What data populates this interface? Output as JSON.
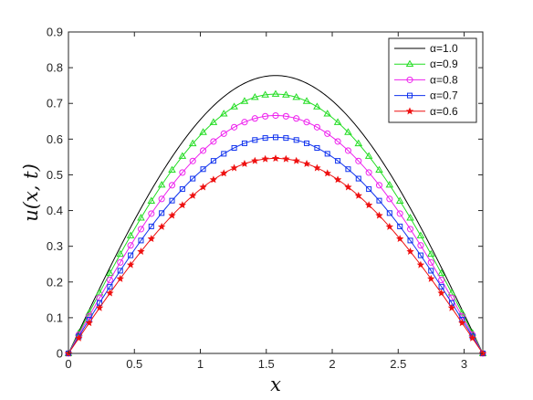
{
  "chart_data": {
    "type": "line",
    "title": "",
    "xlabel": "x",
    "ylabel": "u(x, t)",
    "xlim": [
      0,
      3.1416
    ],
    "ylim": [
      0,
      0.9
    ],
    "x_ticks": [
      "0",
      "0.5",
      "1",
      "1.5",
      "2",
      "2.5",
      "3"
    ],
    "y_ticks": [
      "0",
      "0.1",
      "0.2",
      "0.3",
      "0.4",
      "0.5",
      "0.6",
      "0.7",
      "0.8",
      "0.9"
    ],
    "x_tick_values": [
      0,
      0.5,
      1,
      1.5,
      2,
      2.5,
      3
    ],
    "y_tick_values": [
      0,
      0.1,
      0.2,
      0.3,
      0.4,
      0.5,
      0.6,
      0.7,
      0.8,
      0.9
    ],
    "grid": false,
    "legend_position": "top-right",
    "curve": "u = peak * sin(x), x from 0 to pi",
    "series": [
      {
        "name": "α=1.0",
        "peak": 0.778,
        "color": "#000000",
        "marker": "none"
      },
      {
        "name": "α=0.9",
        "peak": 0.726,
        "color": "#22dd22",
        "marker": "triangle"
      },
      {
        "name": "α=0.8",
        "peak": 0.666,
        "color": "#ee22ee",
        "marker": "circle"
      },
      {
        "name": "α=0.7",
        "peak": 0.605,
        "color": "#1133ee",
        "marker": "square"
      },
      {
        "name": "α=0.6",
        "peak": 0.546,
        "color": "#ee1111",
        "marker": "star"
      }
    ]
  }
}
